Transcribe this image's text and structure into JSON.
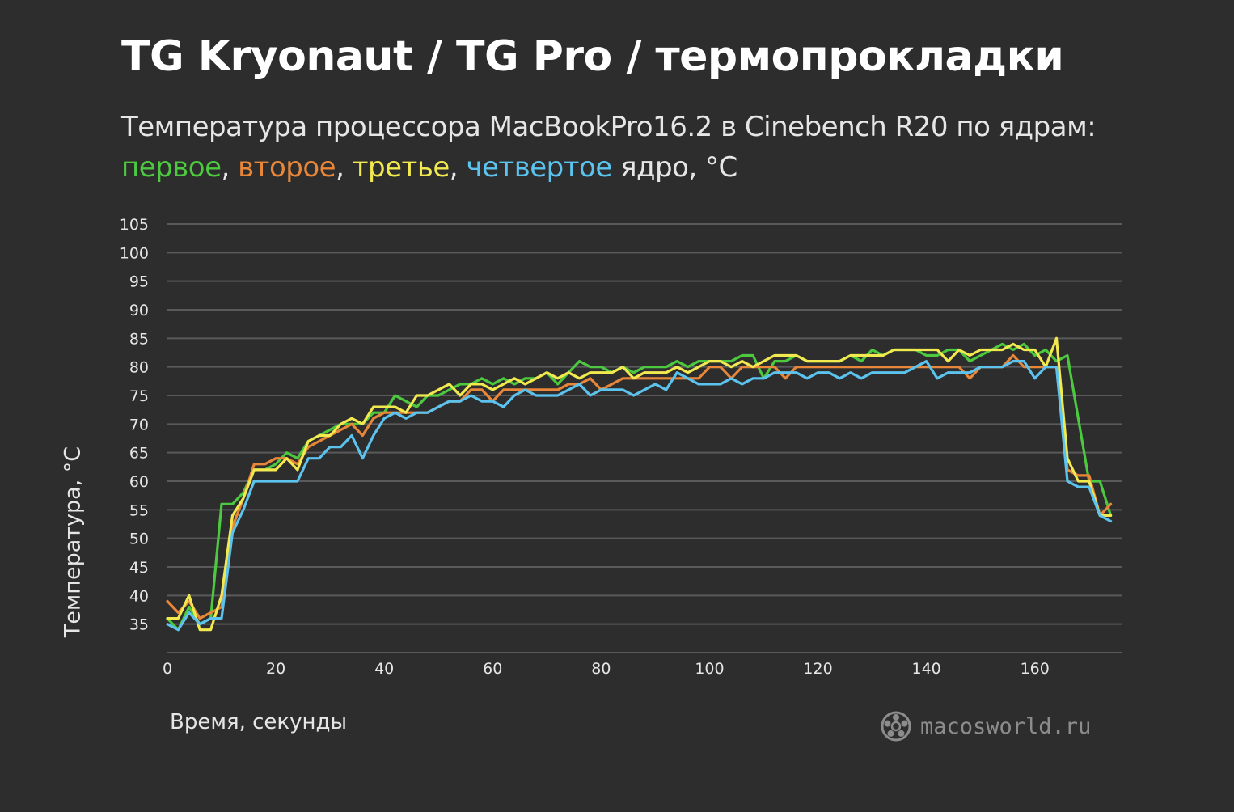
{
  "header": {
    "title": "TG Kryonaut / TG Pro / термопрокладки",
    "subtitle_line1": "Температура процессора MacBookPro16.2 в Cinebench R20 по ядрам:",
    "legend": {
      "s1": "первое",
      "sep1": ", ",
      "s2": "второе",
      "sep2": ", ",
      "s3": "третье",
      "sep3": ", ",
      "s4": "четвертое",
      "tail": " ядро, °C"
    }
  },
  "watermark": {
    "text": "macosworld.ru",
    "icon": "macosworld-logo-icon"
  },
  "colors": {
    "background": "#2d2d2e",
    "grid": "#5a5a5c",
    "axis_text": "#e6e6e6",
    "green": "#4dc93f",
    "orange": "#e8873a",
    "yellow": "#f2e94e",
    "blue": "#5bc3ee"
  },
  "chart_data": {
    "type": "line",
    "title": "",
    "xlabel": "Время, секунды",
    "ylabel": "Температура, °C",
    "xlim": [
      0,
      176
    ],
    "ylim": [
      30,
      105
    ],
    "xticks": [
      0,
      20,
      40,
      60,
      80,
      100,
      120,
      140,
      160
    ],
    "yticks": [
      35,
      40,
      45,
      50,
      55,
      60,
      65,
      70,
      75,
      80,
      85,
      90,
      95,
      100,
      105
    ],
    "grid": true,
    "x": [
      0,
      2,
      4,
      6,
      8,
      10,
      12,
      14,
      16,
      18,
      20,
      22,
      24,
      26,
      28,
      30,
      32,
      34,
      36,
      38,
      40,
      42,
      44,
      46,
      48,
      50,
      52,
      54,
      56,
      58,
      60,
      62,
      64,
      66,
      68,
      70,
      72,
      74,
      76,
      78,
      80,
      82,
      84,
      86,
      88,
      90,
      92,
      94,
      96,
      98,
      100,
      102,
      104,
      106,
      108,
      110,
      112,
      114,
      116,
      118,
      120,
      122,
      124,
      126,
      128,
      130,
      132,
      134,
      136,
      138,
      140,
      142,
      144,
      146,
      148,
      150,
      152,
      154,
      156,
      158,
      160,
      162,
      164,
      166,
      168,
      170,
      172,
      174
    ],
    "series": [
      {
        "name": "первое",
        "color": "#4dc93f",
        "values": [
          36,
          34,
          38,
          35,
          36,
          56,
          56,
          58,
          62,
          62,
          63,
          65,
          64,
          67,
          68,
          69,
          70,
          70,
          70,
          72,
          72,
          75,
          74,
          73,
          75,
          75,
          76,
          77,
          77,
          78,
          77,
          78,
          77,
          78,
          78,
          79,
          77,
          79,
          81,
          80,
          80,
          79,
          80,
          79,
          80,
          80,
          80,
          81,
          80,
          81,
          81,
          81,
          81,
          82,
          82,
          78,
          81,
          81,
          82,
          81,
          81,
          81,
          81,
          82,
          81,
          83,
          82,
          83,
          83,
          83,
          82,
          82,
          83,
          83,
          81,
          82,
          83,
          84,
          83,
          84,
          82,
          83,
          81,
          82,
          71,
          60,
          60,
          54
        ]
      },
      {
        "name": "второе",
        "color": "#e8873a",
        "values": [
          39,
          37,
          39,
          36,
          37,
          38,
          52,
          57,
          63,
          63,
          64,
          64,
          63,
          66,
          67,
          68,
          69,
          70,
          68,
          71,
          72,
          72,
          72,
          72,
          72,
          73,
          74,
          74,
          76,
          76,
          74,
          76,
          76,
          76,
          76,
          76,
          76,
          77,
          77,
          78,
          76,
          77,
          78,
          78,
          78,
          78,
          78,
          78,
          78,
          78,
          80,
          80,
          78,
          80,
          80,
          80,
          80,
          78,
          80,
          80,
          80,
          80,
          80,
          80,
          80,
          80,
          80,
          80,
          80,
          80,
          80,
          80,
          80,
          80,
          78,
          80,
          80,
          80,
          82,
          80,
          80,
          80,
          80,
          62,
          61,
          61,
          54,
          56
        ]
      },
      {
        "name": "третье",
        "color": "#f2e94e",
        "values": [
          36,
          36,
          40,
          34,
          34,
          40,
          54,
          57,
          62,
          62,
          62,
          64,
          62,
          67,
          68,
          68,
          70,
          71,
          70,
          73,
          73,
          73,
          72,
          75,
          75,
          76,
          77,
          75,
          77,
          77,
          76,
          77,
          78,
          77,
          78,
          79,
          78,
          79,
          78,
          79,
          79,
          79,
          80,
          78,
          79,
          79,
          79,
          80,
          79,
          80,
          81,
          81,
          80,
          81,
          80,
          81,
          82,
          82,
          82,
          81,
          81,
          81,
          81,
          82,
          82,
          82,
          82,
          83,
          83,
          83,
          83,
          83,
          81,
          83,
          82,
          83,
          83,
          83,
          84,
          83,
          83,
          80,
          85,
          64,
          60,
          60,
          54,
          54
        ]
      },
      {
        "name": "четвертое",
        "color": "#5bc3ee",
        "values": [
          35,
          34,
          37,
          35,
          36,
          36,
          51,
          55,
          60,
          60,
          60,
          60,
          60,
          64,
          64,
          66,
          66,
          68,
          64,
          68,
          71,
          72,
          71,
          72,
          72,
          73,
          74,
          74,
          75,
          74,
          74,
          73,
          75,
          76,
          75,
          75,
          75,
          76,
          77,
          75,
          76,
          76,
          76,
          75,
          76,
          77,
          76,
          79,
          78,
          77,
          77,
          77,
          78,
          77,
          78,
          78,
          79,
          79,
          79,
          78,
          79,
          79,
          78,
          79,
          78,
          79,
          79,
          79,
          79,
          80,
          81,
          78,
          79,
          79,
          79,
          80,
          80,
          80,
          81,
          81,
          78,
          80,
          80,
          60,
          59,
          59,
          54,
          53
        ]
      }
    ]
  }
}
